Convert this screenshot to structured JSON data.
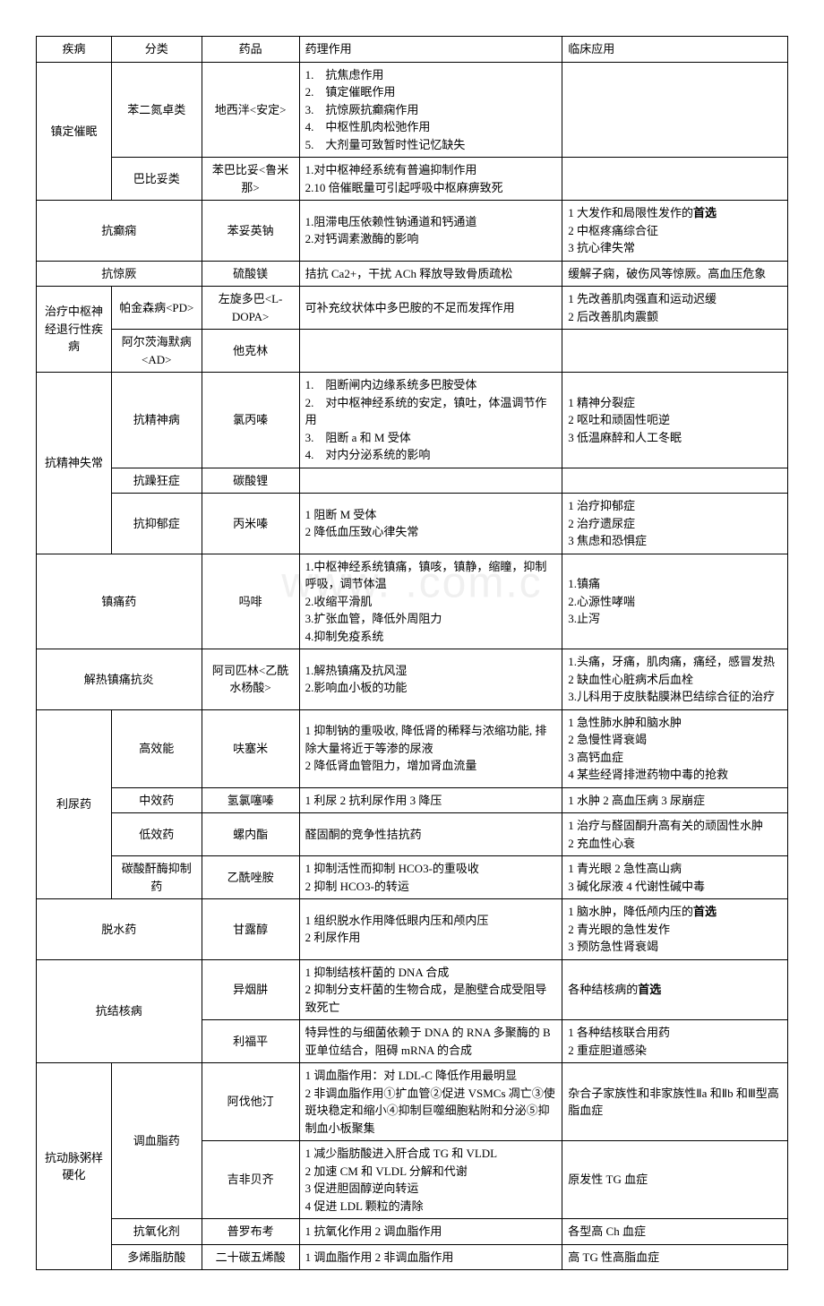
{
  "columns": {
    "disease": "疾病",
    "category": "分类",
    "drug": "药品",
    "pharmacology": "药理作用",
    "clinical": "临床应用"
  },
  "col_widths": [
    "10%",
    "12%",
    "13%",
    "35%",
    "30%"
  ],
  "watermark": "www.        .com.c",
  "rows": [
    {
      "disease": "镇定催眠",
      "disease_rowspan": 2,
      "category": "苯二氮卓类",
      "drug": "地西泮<安定>",
      "pharm": "1.　抗焦虑作用\n2.　镇定催眠作用\n3.　抗惊厥抗癫痫作用\n4.　中枢性肌肉松弛作用\n5.　大剂量可致暂时性记忆缺失",
      "clinical": ""
    },
    {
      "category": "巴比妥类",
      "drug": "苯巴比妥<鲁米那>",
      "pharm": "1.对中枢神经系统有普遍抑制作用\n2.10 倍催眠量可引起呼吸中枢麻痹致死",
      "clinical": ""
    },
    {
      "disease": "抗癫痫",
      "disease_colspan": 2,
      "drug": "苯妥英钠",
      "pharm": "1.阻滞电压依赖性钠通道和钙通道\n2.对钙调素激酶的影响",
      "clinical": "1 大发作和局限性发作的<b>首选</b>\n2 中枢疼痛综合征\n3 抗心律失常"
    },
    {
      "disease": "抗惊厥",
      "disease_colspan": 2,
      "drug": "硫酸镁",
      "pharm": "拮抗 Ca2+，干扰 ACh 释放导致骨质疏松",
      "clinical": "缓解子痫，破伤风等惊厥。高血压危象"
    },
    {
      "disease": "治疗中枢神经退行性疾病",
      "disease_rowspan": 2,
      "category": "帕金森病<PD>",
      "drug": "左旋多巴<L-DOPA>",
      "pharm": "可补充纹状体中多巴胺的不足而发挥作用",
      "clinical": "1 先改善肌肉强直和运动迟缓\n2 后改善肌肉震颤"
    },
    {
      "category": "阿尔茨海默病<AD>",
      "drug": "他克林",
      "pharm": "",
      "clinical": ""
    },
    {
      "disease": "抗精神失常",
      "disease_rowspan": 3,
      "category": "抗精神病",
      "drug": "氯丙嗪",
      "pharm": "1.　阻断闸内边缘系统多巴胺受体\n2.　对中枢神经系统的安定，镇吐，体温调节作用\n3.　阻断 a 和 M 受体\n4.　对内分泌系统的影响",
      "clinical": "1 精神分裂症\n2 呕吐和顽固性呃逆\n3 低温麻醉和人工冬眠"
    },
    {
      "category": "抗躁狂症",
      "drug": "碳酸锂",
      "pharm": "",
      "clinical": ""
    },
    {
      "category": "抗抑郁症",
      "drug": "丙米嗪",
      "pharm": "1 阻断 M 受体\n2 降低血压致心律失常",
      "clinical": "1 治疗抑郁症\n2 治疗遗尿症\n3 焦虑和恐惧症"
    },
    {
      "disease": "镇痛药",
      "disease_colspan": 2,
      "drug": "吗啡",
      "pharm": "1.中枢神经系统镇痛，镇咳，镇静，缩瞳，抑制呼吸，调节体温\n2.收缩平滑肌\n3.扩张血管，降低外周阻力\n4.抑制免疫系统",
      "clinical": "1.镇痛\n2.心源性哮喘\n3.止泻"
    },
    {
      "disease": "解热镇痛抗炎",
      "disease_colspan": 2,
      "drug": "阿司匹林<乙酰水杨酸>",
      "pharm": "1.解热镇痛及抗风湿\n2.影响血小板的功能",
      "clinical": "1.头痛，牙痛，肌肉痛，痛经，感冒发热\n2 缺血性心脏病术后血栓\n3.儿科用于皮肤黏膜淋巴结综合征的治疗"
    },
    {
      "disease": "利尿药",
      "disease_rowspan": 4,
      "category": "高效能",
      "drug": "呋塞米",
      "pharm": "1 抑制钠的重吸收, 降低肾的稀释与浓缩功能, 排除大量将近于等渗的尿液\n2 降低肾血管阻力，增加肾血流量",
      "clinical": "1 急性肺水肿和脑水肿\n2 急慢性肾衰竭\n3 高钙血症\n4 某些经肾排泄药物中毒的抢救"
    },
    {
      "category": "中效药",
      "drug": "氢氯噻嗪",
      "pharm": "1 利尿 2 抗利尿作用 3 降压",
      "clinical": "1 水肿 2 高血压病 3 尿崩症"
    },
    {
      "category": "低效药",
      "drug": "螺内酯",
      "pharm": "醛固酮的竞争性拮抗药",
      "clinical": "1 治疗与醛固酮升高有关的顽固性水肿\n2 充血性心衰"
    },
    {
      "category": "碳酸酐酶抑制药",
      "drug": "乙酰唑胺",
      "pharm": "1 抑制活性而抑制 HCO3-的重吸收\n2 抑制 HCO3-的转运",
      "clinical": "1 青光眼 2 急性高山病\n3 碱化尿液 4 代谢性碱中毒"
    },
    {
      "disease": "脱水药",
      "disease_colspan": 2,
      "drug": "甘露醇",
      "pharm": "1 组织脱水作用降低眼内压和颅内压\n2 利尿作用",
      "clinical": "1 脑水肿，降低颅内压的<b>首选</b>\n2 青光眼的急性发作\n3 预防急性肾衰竭"
    },
    {
      "disease": "抗结核病",
      "disease_colspan": 2,
      "disease_rowspan": 2,
      "drug": "异烟肼",
      "pharm": "1 抑制结核杆菌的 DNA 合成\n2 抑制分支杆菌的生物合成，是胞壁合成受阻导致死亡",
      "clinical": "各种结核病的<b>首选</b>"
    },
    {
      "drug": "利福平",
      "pharm": "特异性的与细菌依赖于 DNA 的 RNA 多聚酶的 B 亚单位结合，阻碍 mRNA 的合成",
      "clinical": "1 各种结核联合用药\n2 重症胆道感染"
    },
    {
      "disease": "抗动脉粥样硬化",
      "disease_rowspan": 4,
      "category": "调血脂药",
      "category_rowspan": 2,
      "drug": "阿伐他汀",
      "pharm": "1 调血脂作用：对 LDL-C 降低作用最明显\n2 非调血脂作用①扩血管②促进 VSMCs 凋亡③使斑块稳定和缩小④抑制巨噬细胞粘附和分泌⑤抑制血小板聚集",
      "clinical": "杂合子家族性和非家族性Ⅱa 和Ⅱb 和Ⅲ型高脂血症"
    },
    {
      "drug": "吉非贝齐",
      "pharm": "1 减少脂肪酸进入肝合成 TG 和 VLDL\n2 加速 CM 和 VLDL 分解和代谢\n3 促进胆固醇逆向转运\n4 促进 LDL 颗粒的清除",
      "clinical": "原发性 TG 血症"
    },
    {
      "category": "抗氧化剂",
      "drug": "普罗布考",
      "pharm": "1 抗氧化作用 2 调血脂作用",
      "clinical": "各型高 Ch 血症"
    },
    {
      "category": "多烯脂肪酸",
      "drug": "二十碳五烯酸",
      "pharm": "1 调血脂作用 2 非调血脂作用",
      "clinical": "高 TG 性高脂血症"
    }
  ]
}
